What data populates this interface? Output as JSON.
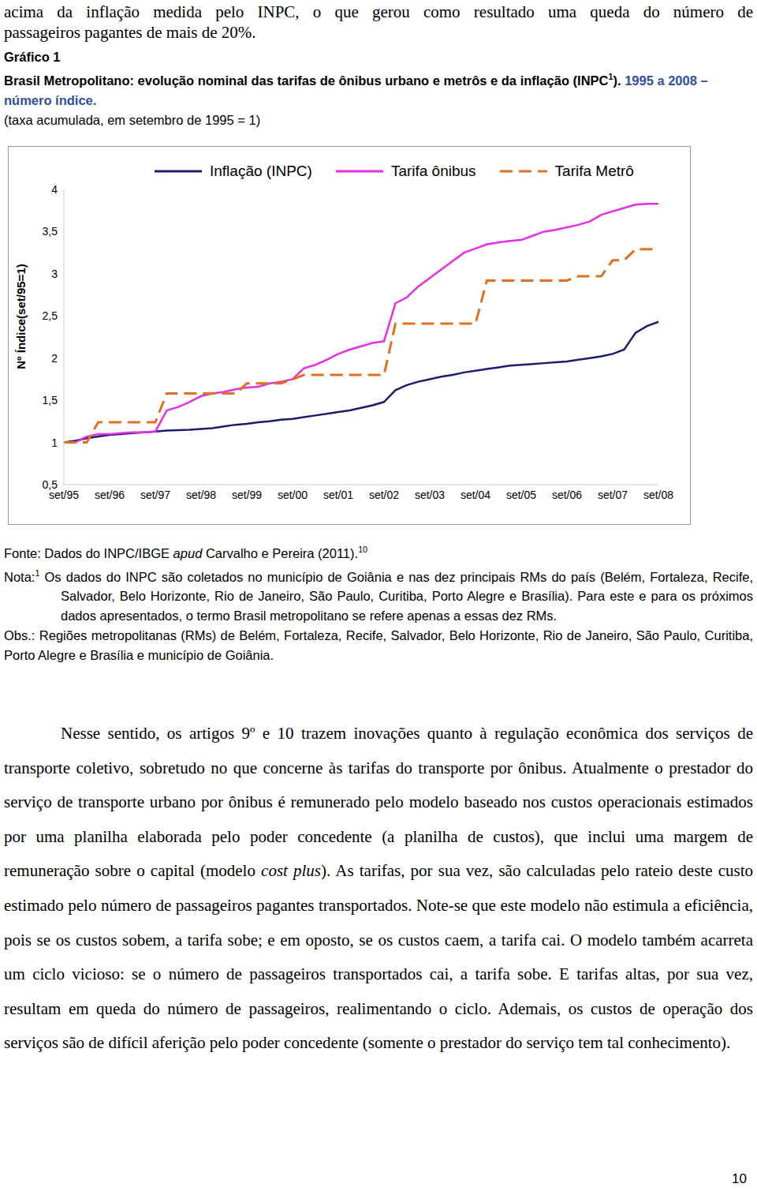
{
  "header": {
    "lines": [
      "acima da inflação medida pelo INPC, o que gerou como resultado uma queda do número de",
      "passageiros pagantes de mais de 20%."
    ]
  },
  "figure": {
    "label": "Gráfico 1",
    "title_parts": [
      {
        "text": "Brasil Metropolitano: evolução nominal das tarifas de ônibus urbano e metrôs e da inflação (INPC"
      },
      {
        "text": "1",
        "sup": true
      },
      {
        "text": ")."
      },
      {
        "text": " 1995 a 2008 – número índice.",
        "color": "#2e4fa0"
      }
    ],
    "subtitle": "(taxa acumulada, em setembro de 1995 = 1)"
  },
  "chart_data": {
    "type": "line",
    "y_label": "Nº Índice(set/95=1)",
    "legend": "top",
    "grid": false,
    "categories": [
      "set/95",
      null,
      null,
      null,
      "set/96",
      null,
      null,
      null,
      "set/97",
      null,
      null,
      null,
      "set/98",
      null,
      null,
      null,
      "set/99",
      null,
      null,
      null,
      "set/00",
      null,
      null,
      null,
      "set/01",
      null,
      null,
      null,
      "set/02",
      null,
      null,
      null,
      "set/03",
      null,
      null,
      null,
      "set/04",
      null,
      null,
      null,
      "set/05",
      null,
      null,
      null,
      "set/06",
      null,
      null,
      null,
      "set/07",
      null,
      null,
      null,
      "set/08"
    ],
    "ylim": [
      0.5,
      4
    ],
    "yticks": [
      {
        "value": 0.5,
        "label": "0,5"
      },
      1,
      {
        "value": 1.5,
        "label": "1,5"
      },
      2,
      {
        "value": 2.5,
        "label": "2,5"
      },
      3,
      {
        "value": 3.5,
        "label": "3,5"
      },
      4
    ],
    "series": [
      {
        "name": "Inflação (INPC)",
        "color": "#1c1c6e",
        "line_style": "solid",
        "values": [
          1.0,
          1.02,
          1.05,
          1.07,
          1.09,
          1.1,
          1.11,
          1.12,
          1.13,
          1.14,
          1.145,
          1.15,
          1.16,
          1.17,
          1.19,
          1.21,
          1.22,
          1.24,
          1.25,
          1.27,
          1.28,
          1.3,
          1.32,
          1.34,
          1.36,
          1.38,
          1.41,
          1.44,
          1.48,
          1.62,
          1.68,
          1.72,
          1.75,
          1.78,
          1.8,
          1.83,
          1.85,
          1.87,
          1.89,
          1.91,
          1.92,
          1.93,
          1.94,
          1.95,
          1.96,
          1.98,
          2.0,
          2.02,
          2.05,
          2.1,
          2.3,
          2.38,
          2.43
        ]
      },
      {
        "name": "Tarifa ônibus",
        "color": "#e62ee6",
        "line_style": "solid",
        "values": [
          1.0,
          1.0,
          1.07,
          1.1,
          1.1,
          1.11,
          1.12,
          1.12,
          1.13,
          1.38,
          1.42,
          1.48,
          1.55,
          1.58,
          1.6,
          1.63,
          1.65,
          1.66,
          1.7,
          1.72,
          1.75,
          1.88,
          1.92,
          1.98,
          2.05,
          2.1,
          2.14,
          2.18,
          2.2,
          2.65,
          2.72,
          2.85,
          2.95,
          3.05,
          3.15,
          3.25,
          3.3,
          3.35,
          3.37,
          3.39,
          3.4,
          3.45,
          3.5,
          3.52,
          3.55,
          3.58,
          3.62,
          3.7,
          3.74,
          3.78,
          3.82,
          3.83,
          3.83
        ]
      },
      {
        "name": "Tarifa Metrô",
        "color": "#e07020",
        "line_style": "dashed",
        "values": [
          1.0,
          1.0,
          1.0,
          1.24,
          1.24,
          1.24,
          1.24,
          1.24,
          1.24,
          1.58,
          1.58,
          1.58,
          1.58,
          1.58,
          1.58,
          1.58,
          1.7,
          1.7,
          1.7,
          1.7,
          1.75,
          1.8,
          1.8,
          1.8,
          1.8,
          1.8,
          1.8,
          1.8,
          1.8,
          2.41,
          2.41,
          2.41,
          2.41,
          2.41,
          2.41,
          2.41,
          2.41,
          2.92,
          2.92,
          2.92,
          2.92,
          2.92,
          2.92,
          2.92,
          2.92,
          2.97,
          2.97,
          2.97,
          3.16,
          3.16,
          3.29,
          3.29,
          3.29
        ]
      }
    ]
  },
  "notes": {
    "source_parts": [
      {
        "text": "Fonte: Dados do INPC/IBGE "
      },
      {
        "text": "apud",
        "italic": true
      },
      {
        "text": " Carvalho e Pereira (2011)."
      },
      {
        "text": "10",
        "sup": true
      }
    ],
    "nota_label": "Nota:",
    "nota_mark": "1",
    "nota_text": " Os dados do INPC são coletados no município de Goiânia e nas dez principais RMs do país (Belém, Fortaleza, Recife, Salvador, Belo Horizonte, Rio de Janeiro, São Paulo, Curitiba, Porto Alegre e Brasília). Para este e para os próximos dados apresentados, o termo Brasil metropolitano se refere apenas a essas dez RMs.",
    "obs_label": "Obs.:",
    "obs_text": " Regiões metropolitanas (RMs) de Belém, Fortaleza, Recife, Salvador, Belo Horizonte, Rio de Janeiro, São Paulo, Curitiba, Porto Alegre e Brasília e município de Goiânia."
  },
  "body": {
    "parts": [
      {
        "text": "Nesse sentido, os artigos 9º e 10 trazem inovações quanto à regulação econômica dos serviços de transporte coletivo, sobretudo no que concerne às tarifas do transporte por ônibus. Atualmente o prestador do serviço de transporte urbano por ônibus é remunerado pelo modelo baseado nos custos operacionais estimados por uma planilha elaborada pelo poder concedente (a planilha de custos), que inclui uma margem de remuneração sobre o capital (modelo "
      },
      {
        "text": "cost plus",
        "italic": true
      },
      {
        "text": "). As tarifas, por sua vez, são calculadas pelo rateio deste custo estimado pelo número de passageiros pagantes transportados. Note-se que este modelo não estimula a eficiência, pois se os custos sobem, a tarifa sobe; e em oposto, se os custos caem, a tarifa cai. O modelo também acarreta um ciclo vicioso: se o número de passageiros transportados cai, a tarifa sobe. E tarifas altas, por sua vez, resultam em queda do número de passageiros, realimentando o ciclo. Ademais, os custos de operação dos serviços são de difícil aferição pelo poder concedente (somente o prestador do serviço tem tal conhecimento)."
      }
    ]
  },
  "page_number": "10"
}
